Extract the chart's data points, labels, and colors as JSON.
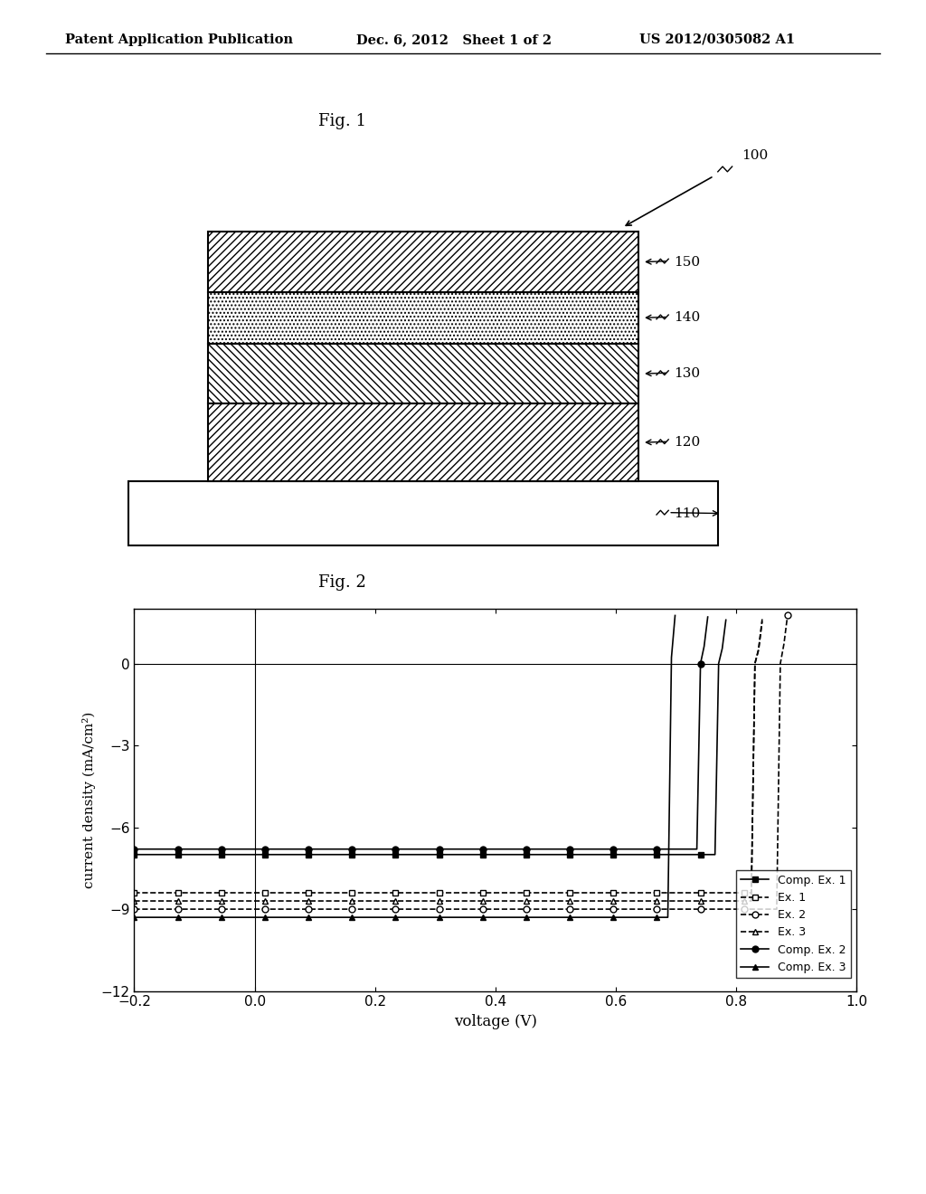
{
  "header_left": "Patent Application Publication",
  "header_mid": "Dec. 6, 2012   Sheet 1 of 2",
  "header_right": "US 2012/0305082 A1",
  "fig1_label": "Fig. 1",
  "fig2_label": "Fig. 2",
  "xlabel": "voltage (V)",
  "ylabel": "current density (mA/cm²)",
  "xlim": [
    -0.2,
    1.0
  ],
  "ylim": [
    -12,
    2
  ],
  "xticks": [
    -0.2,
    0.0,
    0.2,
    0.4,
    0.6,
    0.8,
    1.0
  ],
  "yticks": [
    -12,
    -9,
    -6,
    -3,
    0
  ],
  "background_color": "#ffffff",
  "curves": [
    {
      "label": "Comp. Ex. 1",
      "jsc": 7.0,
      "voc": 0.77,
      "j02": 2e-07,
      "n2": 2.2,
      "rs": 3.5,
      "rsh": 300,
      "marker": "s",
      "filled": true
    },
    {
      "label": "Ex. 1",
      "jsc": 8.5,
      "voc": 0.82,
      "j02": 2e-07,
      "n2": 2.5,
      "rs": 3.0,
      "rsh": 400,
      "marker": "s",
      "filled": false
    },
    {
      "label": "Ex. 2",
      "jsc": 9.0,
      "voc": 0.86,
      "j02": 2e-07,
      "n2": 2.8,
      "rs": 2.8,
      "rsh": 500,
      "marker": "o",
      "filled": false
    },
    {
      "label": "Ex. 3",
      "jsc": 8.7,
      "voc": 0.83,
      "j02": 2e-07,
      "n2": 2.6,
      "rs": 3.1,
      "rsh": 450,
      "marker": "^",
      "filled": false
    },
    {
      "label": "Comp. Ex. 2",
      "jsc": 6.8,
      "voc": 0.74,
      "j02": 2e-07,
      "n2": 2.0,
      "rs": 4.0,
      "rsh": 250,
      "marker": "o",
      "filled": true
    },
    {
      "label": "Comp. Ex. 3",
      "jsc": 9.2,
      "voc": 0.69,
      "j02": 2e-07,
      "n2": 1.8,
      "rs": 4.5,
      "rsh": 200,
      "marker": "^",
      "filled": true
    }
  ]
}
